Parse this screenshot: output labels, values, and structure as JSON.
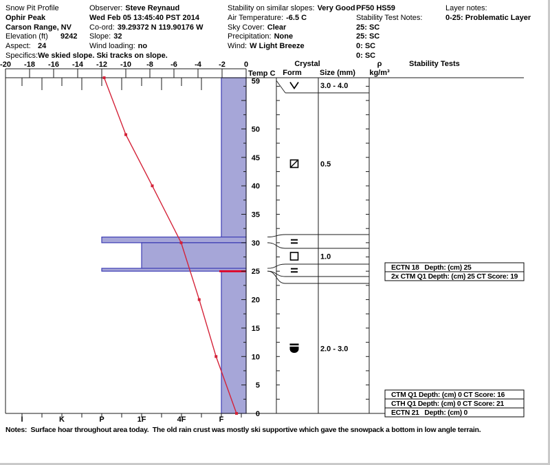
{
  "header": {
    "profile_title": "Snow Pit Profile",
    "site": {
      "name": "Ophir Peak",
      "range": "Carson Range, NV",
      "elevation_label": "Elevation (ft)",
      "elevation": "9242",
      "aspect_label": "Aspect:",
      "aspect": "24",
      "specifics_label": "Specifics:",
      "specifics": "We skied slope. Ski tracks on slope."
    },
    "observation": {
      "observer_label": "Observer:",
      "observer": "Steve Reynaud",
      "datetime": "Wed Feb 05 13:45:40 PST 2014",
      "coord_label": "Co-ord:",
      "coord": "39.29372 N 119.90176 W",
      "slope_label": "Slope:",
      "slope": "32",
      "wind_loading_label": "Wind loading:",
      "wind_loading": "no"
    },
    "conditions": {
      "stability_label": "Stability on similar slopes:",
      "stability": "Very Good",
      "air_temp_label": "Air Temperature:",
      "air_temp": "-6.5 C",
      "sky_label": "Sky Cover:",
      "sky": "Clear",
      "precip_label": "Precipitation:",
      "precip": "None",
      "wind_label": "Wind:",
      "wind": "W Light Breeze"
    },
    "pit_summary": {
      "pf_hs": "PF50 HS59",
      "test_notes_label": "Stability Test Notes:",
      "test_notes": [
        "25: SC",
        "25: SC",
        "0: SC",
        "0: SC"
      ]
    },
    "layer_notes": {
      "label": "Layer notes:",
      "value": "0-25: Problematic Layer"
    }
  },
  "columns": {
    "temp_c": "Temp C",
    "crystal": "Crystal",
    "form": "Form",
    "size": "Size (mm)",
    "rho": "ρ",
    "rho_units": "kg/m³",
    "stability_tests": "Stability Tests"
  },
  "chart_data": {
    "type": "snow-pit-profile",
    "temp_axis": {
      "unit": "C",
      "labels": [
        -20,
        -18,
        -16,
        -14,
        -12,
        -10,
        -8,
        -6,
        -4,
        -2,
        0
      ],
      "range": [
        -20,
        0
      ]
    },
    "depth_axis": {
      "unit": "cm",
      "labels": [
        59,
        50,
        45,
        40,
        35,
        30,
        25,
        20,
        15,
        10,
        5,
        0
      ],
      "total_depth_cm": 59
    },
    "hardness_axis": {
      "labels": [
        "I",
        "K",
        "P",
        "1F",
        "4F",
        "F"
      ],
      "order": "hardest (I) at left to softest (F) at right"
    },
    "temperature_profile": [
      {
        "depth_cm": 59,
        "temp_c": -11.8
      },
      {
        "depth_cm": 49,
        "temp_c": -10.0
      },
      {
        "depth_cm": 40,
        "temp_c": -7.8
      },
      {
        "depth_cm": 30,
        "temp_c": -5.4
      },
      {
        "depth_cm": 20,
        "temp_c": -3.9
      },
      {
        "depth_cm": 10,
        "temp_c": -2.5
      },
      {
        "depth_cm": 0,
        "temp_c": -0.8
      }
    ],
    "hardness_profile": [
      {
        "from": 59,
        "to": 31,
        "hardness": "F"
      },
      {
        "from": 31,
        "to": 30,
        "hardness": "P"
      },
      {
        "from": 30,
        "to": 25.5,
        "hardness": "1F"
      },
      {
        "from": 25.5,
        "to": 25,
        "hardness": "P"
      },
      {
        "from": 25,
        "to": 0,
        "hardness": "F",
        "flagged": true
      }
    ],
    "flag": {
      "depth_cm": 25
    },
    "layers": [
      {
        "from": 59,
        "to": 58.5,
        "grain_form": "surface hoar",
        "glyph": "surface_hoar",
        "size_mm": "3.0 - 4.0"
      },
      {
        "from": 58.5,
        "to": 31,
        "grain_form": "rounding faceted particles",
        "glyph": "square_slash",
        "size_mm": "0.5"
      },
      {
        "from": 31,
        "to": 30,
        "grain_form": "ice crust",
        "glyph": "ice",
        "size_mm": ""
      },
      {
        "from": 30,
        "to": 25.5,
        "grain_form": "faceted crystals",
        "glyph": "square",
        "size_mm": "1.0"
      },
      {
        "from": 25.5,
        "to": 25,
        "grain_form": "ice crust",
        "glyph": "ice",
        "size_mm": ""
      },
      {
        "from": 25,
        "to": 0,
        "grain_form": "melt-freeze crust",
        "glyph": "crust",
        "size_mm": "2.0 - 3.0"
      }
    ],
    "stability_tests": [
      {
        "label": "ECTN 18   Depth: (cm) 25"
      },
      {
        "label": "2x CTM Q1 Depth: (cm) 25 CT Score: 19"
      },
      {
        "label": "CTM Q1 Depth: (cm) 0 CT Score: 16"
      },
      {
        "label": "CTH Q1 Depth: (cm) 0 CT Score: 21"
      },
      {
        "label": "ECTN 21   Depth: (cm) 0"
      }
    ],
    "colors": {
      "bar_fill": "#a6a6d8",
      "bar_border": "#3c3cb4",
      "temp_line": "#d42238",
      "flag_line": "#e00022"
    }
  },
  "notes": "Notes:  Surface hoar throughout area today.  The old rain crust was mostly ski supportive which gave the snowpack a bottom in low angle terrain."
}
